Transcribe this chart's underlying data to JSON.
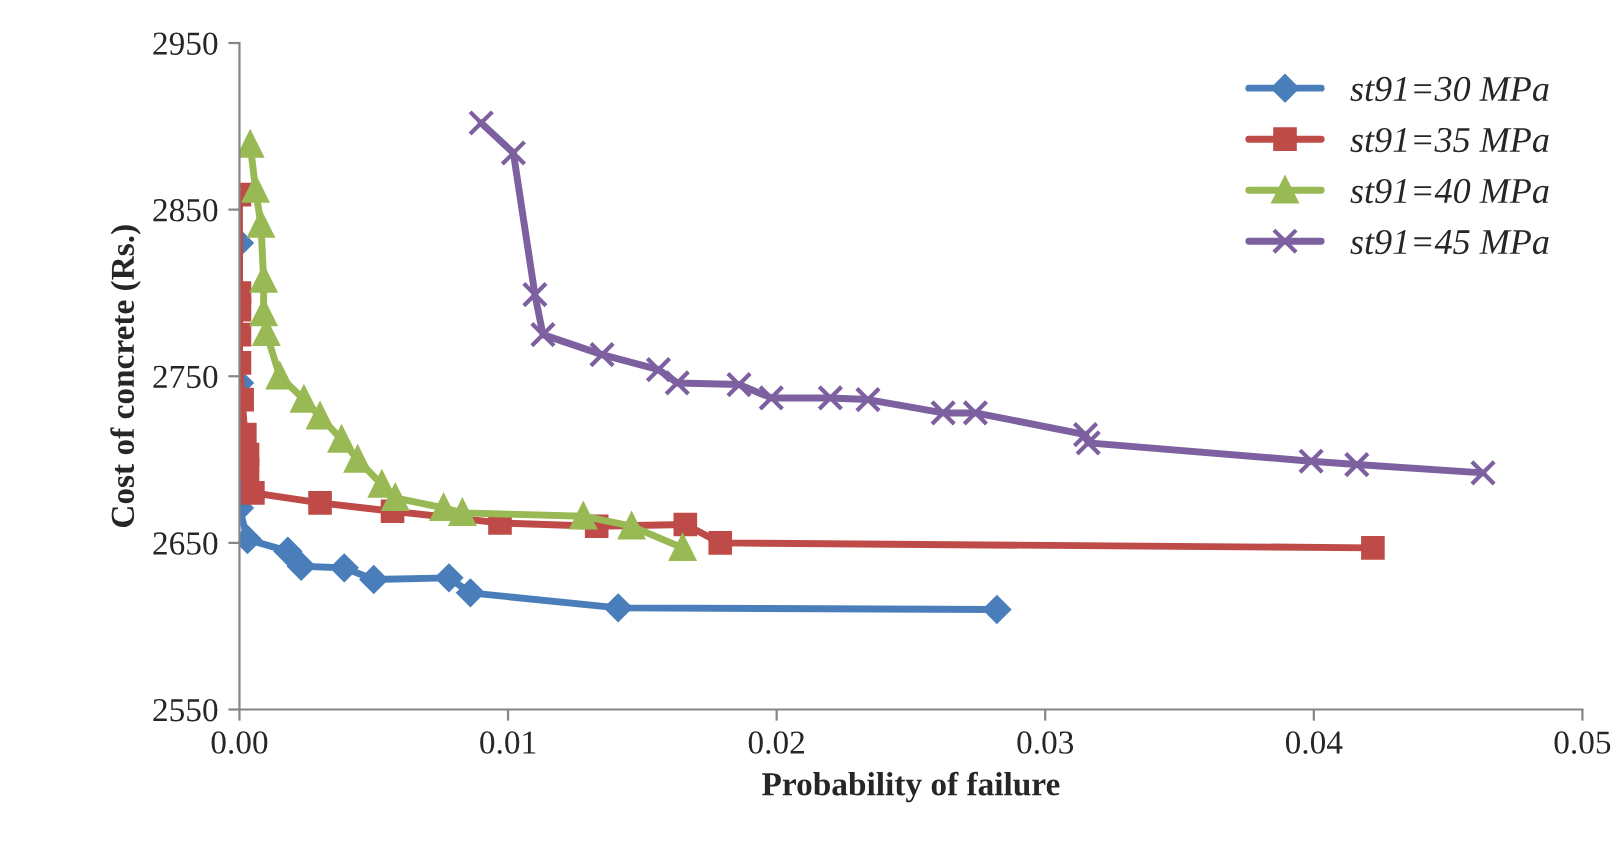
{
  "chart_data": {
    "type": "line",
    "xlabel": "Probability of failure",
    "ylabel": "Cost of concrete (Rs.)",
    "xlim": [
      0,
      0.05
    ],
    "xticks": [
      {
        "value": 0,
        "label": "0.00"
      },
      {
        "value": 0.01,
        "label": "0.01"
      },
      {
        "value": 0.02,
        "label": "0.02"
      },
      {
        "value": 0.03,
        "label": "0.03"
      },
      {
        "value": 0.04,
        "label": "0.04"
      },
      {
        "value": 0.05,
        "label": "0.05"
      }
    ],
    "ylim": [
      2550,
      2950
    ],
    "yticks": [
      2550,
      2650,
      2750,
      2850,
      2950
    ],
    "legend": "top right",
    "grid": false,
    "line_style": "solid",
    "series": [
      {
        "name": "st91=30 MPa",
        "color": "#4a7ebb",
        "marker": "diamond",
        "x": [
          0,
          0,
          0,
          0,
          0,
          0.0003,
          0.0018,
          0.0023,
          0.0039,
          0.005,
          0.0078,
          0.0086,
          0.0141,
          0.0282
        ],
        "values": [
          2830,
          2746,
          2712,
          2690,
          2671,
          2652,
          2645,
          2636,
          2635,
          2628,
          2629,
          2620,
          2611,
          2610
        ]
      },
      {
        "name": "st91=35 MPa",
        "color": "#be4b48",
        "marker": "square",
        "x": [
          0,
          0,
          0,
          0,
          0,
          0.0001,
          0.0002,
          0.0003,
          0.0003,
          0.0005,
          0.003,
          0.0057,
          0.0097,
          0.0133,
          0.0166,
          0.0179,
          0.0422
        ],
        "values": [
          2859,
          2800,
          2790,
          2775,
          2758,
          2736,
          2715,
          2703,
          2694,
          2680,
          2674,
          2669,
          2662,
          2660,
          2661,
          2650,
          2647
        ]
      },
      {
        "name": "st91=40 MPa",
        "color": "#98b954",
        "marker": "triangle",
        "x": [
          0.0004,
          0.0006,
          0.0008,
          0.0009,
          0.0009,
          0.001,
          0.0015,
          0.0024,
          0.003,
          0.0038,
          0.0044,
          0.0053,
          0.0058,
          0.0076,
          0.0083,
          0.0128,
          0.0146,
          0.0165
        ],
        "values": [
          2889,
          2862,
          2841,
          2808,
          2788,
          2776,
          2750,
          2736,
          2726,
          2712,
          2700,
          2685,
          2677,
          2671,
          2668,
          2666,
          2660,
          2647
        ]
      },
      {
        "name": "st91=45 MPa",
        "color": "#7d60a0",
        "marker": "cross",
        "x": [
          0.009,
          0.0102,
          0.011,
          0.0113,
          0.0135,
          0.0156,
          0.0163,
          0.0186,
          0.0198,
          0.022,
          0.0234,
          0.0262,
          0.0274,
          0.0315,
          0.0316,
          0.0399,
          0.0416,
          0.0463
        ],
        "values": [
          2902,
          2884,
          2799,
          2775,
          2763,
          2754,
          2746,
          2745,
          2737,
          2737,
          2736,
          2728,
          2728,
          2715,
          2710,
          2699,
          2697,
          2692
        ]
      }
    ]
  }
}
